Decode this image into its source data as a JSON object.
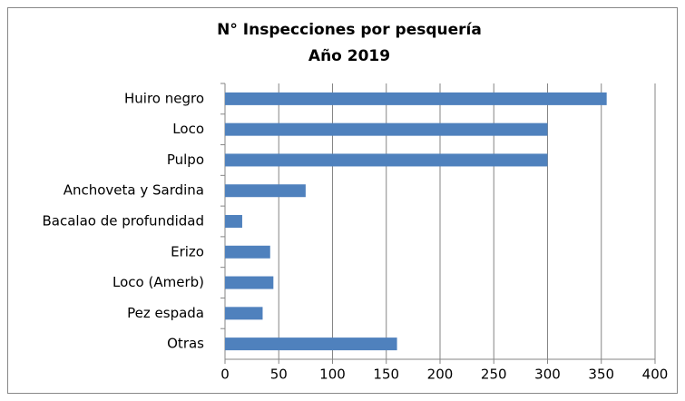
{
  "chart_data": {
    "type": "bar",
    "orientation": "horizontal",
    "title": "N° Inspecciones por pesquería",
    "subtitle": "Año 2019",
    "categories": [
      "Huiro negro",
      "Loco",
      "Pulpo",
      "Anchoveta y Sardina",
      "Bacalao de profundidad",
      "Erizo",
      "Loco (Amerb)",
      "Pez espada",
      "Otras"
    ],
    "values": [
      355,
      300,
      300,
      75,
      16,
      42,
      45,
      35,
      160
    ],
    "color": "#4f81bd",
    "xlim": [
      0,
      400
    ],
    "xticks": [
      0,
      50,
      100,
      150,
      200,
      250,
      300,
      350,
      400
    ],
    "grid": true
  }
}
